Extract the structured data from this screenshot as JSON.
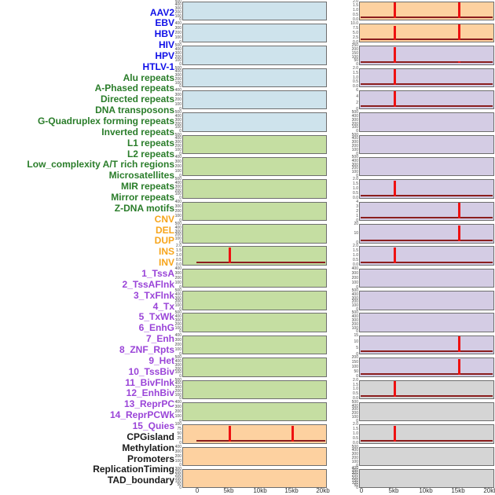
{
  "style": {
    "spike_color": "#ee1111",
    "baseline_color": "#8b1e1e",
    "panel_border_color": "#6e6e6e",
    "tick_text_color": "#4a4a4a"
  },
  "categories": {
    "virus": {
      "label_color": "#0f0fe8",
      "panel_color": "#cee3ec"
    },
    "repeat": {
      "label_color": "#2a7d2a",
      "panel_color": "#c5dea2"
    },
    "sv": {
      "label_color": "#f7a51b",
      "panel_color": "#fdd1a0"
    },
    "chromhmm": {
      "label_color": "#9a44d8",
      "panel_color": "#d4cce4"
    },
    "other": {
      "label_color": "#1a1a1a",
      "panel_color": "#d5d5d5"
    }
  },
  "chart_data": {
    "type": "bar",
    "title": "",
    "description": "Grid of 44 genomic annotation signal tracks over a 0-20kb window; 22 rows x 2 columns filled column-major (tracks 1-22 left column, 23-44 right column). Red vertical bars mark signal spikes at 5kb and/or 15kb; dark red line is the zero baseline.",
    "x_axis": {
      "ticks": [
        "0",
        "5kb",
        "10kb",
        "15kb",
        "20kb"
      ],
      "range_kb": [
        0,
        20
      ]
    },
    "tracks": [
      {
        "label": "AAV2",
        "category": "virus",
        "y_ticks": [
          "500",
          "400",
          "300",
          "200",
          "100",
          "0"
        ],
        "spikes": [],
        "baseline": false
      },
      {
        "label": "EBV",
        "category": "virus",
        "y_ticks": [
          "400",
          "300",
          "200",
          "100",
          "0"
        ],
        "spikes": [],
        "baseline": false
      },
      {
        "label": "HBV",
        "category": "virus",
        "y_ticks": [
          "500",
          "400",
          "300",
          "200",
          "100",
          "0"
        ],
        "spikes": [],
        "baseline": false
      },
      {
        "label": "HIV",
        "category": "virus",
        "y_ticks": [
          "500",
          "400",
          "300",
          "200",
          "100",
          "0"
        ],
        "spikes": [],
        "baseline": false
      },
      {
        "label": "HPV",
        "category": "virus",
        "y_ticks": [
          "400",
          "300",
          "200",
          "100",
          "0"
        ],
        "spikes": [],
        "baseline": false
      },
      {
        "label": "HTLV-1",
        "category": "virus",
        "y_ticks": [
          "500",
          "400",
          "300",
          "200",
          "100",
          "0"
        ],
        "spikes": [],
        "baseline": false
      },
      {
        "label": "Alu repeats",
        "category": "repeat",
        "y_ticks": [
          "500",
          "400",
          "300",
          "200",
          "100",
          "0"
        ],
        "spikes": [],
        "baseline": false
      },
      {
        "label": "A-Phased repeats",
        "category": "repeat",
        "y_ticks": [
          "400",
          "300",
          "200",
          "100",
          "0"
        ],
        "spikes": [],
        "baseline": false
      },
      {
        "label": "Directed repeats",
        "category": "repeat",
        "y_ticks": [
          "500",
          "400",
          "300",
          "200",
          "100",
          "0"
        ],
        "spikes": [],
        "baseline": false
      },
      {
        "label": "DNA transposons",
        "category": "repeat",
        "y_ticks": [
          "400",
          "300",
          "200",
          "100",
          "0"
        ],
        "spikes": [],
        "baseline": false
      },
      {
        "label": "G-Quadruplex forming repeats",
        "category": "repeat",
        "y_ticks": [
          "500",
          "400",
          "300",
          "200",
          "100",
          "0"
        ],
        "spikes": [],
        "baseline": false
      },
      {
        "label": "Inverted repeats",
        "category": "repeat",
        "y_ticks": [
          "2.0",
          "1.5",
          "1.0",
          "0.5",
          "0.0"
        ],
        "spikes": [
          {
            "x_kb": 5,
            "height_frac": 1.0
          }
        ],
        "baseline": true
      },
      {
        "label": "L1 repeats",
        "category": "repeat",
        "y_ticks": [
          "400",
          "300",
          "200",
          "100",
          "0"
        ],
        "spikes": [],
        "baseline": false
      },
      {
        "label": "L2 repeats",
        "category": "repeat",
        "y_ticks": [
          "500",
          "400",
          "300",
          "200",
          "100",
          "0"
        ],
        "spikes": [],
        "baseline": false
      },
      {
        "label": "Low_complexity A/T rich regions",
        "category": "repeat",
        "y_ticks": [
          "500",
          "400",
          "300",
          "200",
          "100",
          "0"
        ],
        "spikes": [],
        "baseline": false
      },
      {
        "label": "Microsatellites",
        "category": "repeat",
        "y_ticks": [
          "400",
          "300",
          "200",
          "100",
          "0"
        ],
        "spikes": [],
        "baseline": false
      },
      {
        "label": "MIR repeats",
        "category": "repeat",
        "y_ticks": [
          "500",
          "400",
          "300",
          "200",
          "100",
          "0"
        ],
        "spikes": [],
        "baseline": false
      },
      {
        "label": "Mirror repeats",
        "category": "repeat",
        "y_ticks": [
          "500",
          "400",
          "300",
          "200",
          "100",
          "0"
        ],
        "spikes": [],
        "baseline": false
      },
      {
        "label": "Z-DNA motifs",
        "category": "repeat",
        "y_ticks": [
          "400",
          "300",
          "200",
          "100",
          "0"
        ],
        "spikes": [],
        "baseline": false
      },
      {
        "label": "CNV",
        "category": "sv",
        "y_ticks": [
          "100",
          "75",
          "50",
          "25",
          "0"
        ],
        "spikes": [
          {
            "x_kb": 5,
            "height_frac": 1.0
          },
          {
            "x_kb": 15,
            "height_frac": 1.0
          }
        ],
        "baseline": true
      },
      {
        "label": "DEL",
        "category": "sv",
        "y_ticks": [
          "400",
          "300",
          "200",
          "100",
          "0"
        ],
        "spikes": [],
        "baseline": false
      },
      {
        "label": "DUP",
        "category": "sv",
        "y_ticks": [
          "300",
          "250",
          "200",
          "150",
          "100",
          "50",
          "0"
        ],
        "spikes": [],
        "baseline": false
      },
      {
        "label": "INS",
        "category": "sv",
        "y_ticks": [
          "2.0",
          "1.5",
          "1.0",
          "0.5",
          "0.0"
        ],
        "spikes": [
          {
            "x_kb": 5,
            "height_frac": 1.0
          },
          {
            "x_kb": 15,
            "height_frac": 1.0
          }
        ],
        "baseline": true
      },
      {
        "label": "INV",
        "category": "sv",
        "y_ticks": [
          "10.0",
          "7.5",
          "5.0",
          "2.5",
          "0.0"
        ],
        "spikes": [
          {
            "x_kb": 5,
            "height_frac": 0.93
          },
          {
            "x_kb": 15,
            "height_frac": 1.0
          }
        ],
        "baseline": true
      },
      {
        "label": "1_TssA",
        "category": "chromhmm",
        "y_ticks": [
          "250",
          "200",
          "150",
          "100",
          "50",
          "0"
        ],
        "spikes": [
          {
            "x_kb": 5,
            "height_frac": 1.0
          },
          {
            "x_kb": 15,
            "height_frac": 0.08
          }
        ],
        "baseline": true
      },
      {
        "label": "2_TssAFlnk",
        "category": "chromhmm",
        "y_ticks": [
          "2.0",
          "1.5",
          "1.0",
          "0.5",
          "0.0"
        ],
        "spikes": [
          {
            "x_kb": 5,
            "height_frac": 1.0
          }
        ],
        "baseline": true
      },
      {
        "label": "3_TxFlnk",
        "category": "chromhmm",
        "y_ticks": [
          "6",
          "4",
          "2",
          "0"
        ],
        "spikes": [
          {
            "x_kb": 5,
            "height_frac": 1.0
          }
        ],
        "baseline": true
      },
      {
        "label": "4_Tx",
        "category": "chromhmm",
        "y_ticks": [
          "500",
          "400",
          "300",
          "200",
          "100",
          "0"
        ],
        "spikes": [],
        "baseline": false
      },
      {
        "label": "5_TxWk",
        "category": "chromhmm",
        "y_ticks": [
          "500",
          "400",
          "300",
          "200",
          "100",
          "0"
        ],
        "spikes": [],
        "baseline": false
      },
      {
        "label": "6_EnhG",
        "category": "chromhmm",
        "y_ticks": [
          "500",
          "400",
          "300",
          "200",
          "100",
          "0"
        ],
        "spikes": [],
        "baseline": false
      },
      {
        "label": "7_Enh",
        "category": "chromhmm",
        "y_ticks": [
          "2.0",
          "1.5",
          "1.0",
          "0.5",
          "0.0"
        ],
        "spikes": [
          {
            "x_kb": 5,
            "height_frac": 1.0
          }
        ],
        "baseline": true
      },
      {
        "label": "8_ZNF_Rpts",
        "category": "chromhmm",
        "y_ticks": [
          "4",
          "3",
          "2",
          "1",
          "0"
        ],
        "spikes": [
          {
            "x_kb": 15,
            "height_frac": 1.0
          }
        ],
        "baseline": true
      },
      {
        "label": "9_Het",
        "category": "chromhmm",
        "y_ticks": [
          "20",
          "10",
          "0"
        ],
        "spikes": [
          {
            "x_kb": 15,
            "height_frac": 1.0
          }
        ],
        "baseline": true
      },
      {
        "label": "10_TssBiv",
        "category": "chromhmm",
        "y_ticks": [
          "2.0",
          "1.5",
          "1.0",
          "0.5",
          "0.0"
        ],
        "spikes": [
          {
            "x_kb": 5,
            "height_frac": 1.0
          }
        ],
        "baseline": true
      },
      {
        "label": "11_BivFlnk",
        "category": "chromhmm",
        "y_ticks": [
          "400",
          "300",
          "200",
          "100",
          "0"
        ],
        "spikes": [],
        "baseline": false
      },
      {
        "label": "12_EnhBiv",
        "category": "chromhmm",
        "y_ticks": [
          "500",
          "400",
          "300",
          "200",
          "100",
          "0"
        ],
        "spikes": [],
        "baseline": false
      },
      {
        "label": "13_ReprPC",
        "category": "chromhmm",
        "y_ticks": [
          "500",
          "400",
          "300",
          "200",
          "100",
          "0"
        ],
        "spikes": [],
        "baseline": false
      },
      {
        "label": "14_ReprPCWk",
        "category": "chromhmm",
        "y_ticks": [
          "15",
          "10",
          "5",
          "0"
        ],
        "spikes": [
          {
            "x_kb": 15,
            "height_frac": 1.0
          }
        ],
        "baseline": true
      },
      {
        "label": "15_Quies",
        "category": "chromhmm",
        "y_ticks": [
          "200",
          "150",
          "100",
          "50",
          "0"
        ],
        "spikes": [
          {
            "x_kb": 15,
            "height_frac": 1.0
          }
        ],
        "baseline": true
      },
      {
        "label": "CPGisland",
        "category": "other",
        "y_ticks": [
          "2.0",
          "1.5",
          "1.0",
          "0.5",
          "0.0"
        ],
        "spikes": [
          {
            "x_kb": 5,
            "height_frac": 1.0
          }
        ],
        "baseline": true
      },
      {
        "label": "Methylation",
        "category": "other",
        "y_ticks": [
          "500",
          "400",
          "300",
          "200",
          "100",
          "0"
        ],
        "spikes": [],
        "baseline": false
      },
      {
        "label": "Promoters",
        "category": "other",
        "y_ticks": [
          "2.0",
          "1.5",
          "1.0",
          "0.5",
          "0.0"
        ],
        "spikes": [
          {
            "x_kb": 5,
            "height_frac": 1.0
          }
        ],
        "baseline": true
      },
      {
        "label": "ReplicationTiming",
        "category": "other",
        "y_ticks": [
          "500",
          "400",
          "300",
          "200",
          "100",
          "0"
        ],
        "spikes": [],
        "baseline": false
      },
      {
        "label": "TAD_boundary",
        "category": "other",
        "y_ticks": [
          "400",
          "350",
          "300",
          "250",
          "200",
          "150",
          "100",
          "50",
          "0"
        ],
        "spikes": [],
        "baseline": false
      }
    ]
  }
}
